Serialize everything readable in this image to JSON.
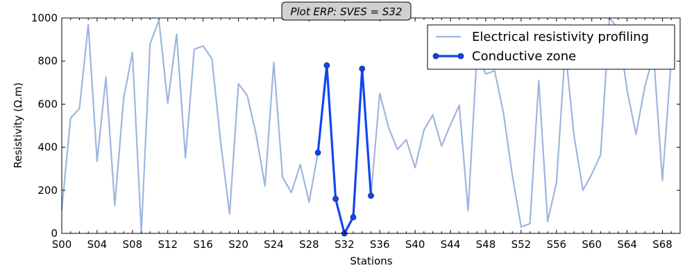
{
  "chart_data": {
    "type": "line",
    "title": "Plot ERP: SVES = S32",
    "xlabel": "Stations",
    "ylabel": "Resistivity (Ω.m)",
    "ylim": [
      0,
      1000
    ],
    "xlim": [
      0,
      70
    ],
    "yticks": [
      0,
      200,
      400,
      600,
      800,
      1000
    ],
    "xtick_labels": [
      "S00",
      "S04",
      "S08",
      "S12",
      "S16",
      "S20",
      "S24",
      "S28",
      "S32",
      "S36",
      "S40",
      "S44",
      "S48",
      "S52",
      "S56",
      "S60",
      "S64",
      "S68"
    ],
    "xtick_step": 4,
    "grid": false,
    "legend": "top-right",
    "series": [
      {
        "name": "Electrical resistivity profiling",
        "color": "#9db5e0",
        "x": [
          0,
          1,
          2,
          3,
          4,
          5,
          6,
          7,
          8,
          9,
          10,
          11,
          12,
          13,
          14,
          15,
          16,
          17,
          18,
          19,
          20,
          21,
          22,
          23,
          24,
          25,
          26,
          27,
          28,
          29,
          30,
          31,
          32,
          33,
          34,
          35,
          36,
          37,
          38,
          39,
          40,
          41,
          42,
          43,
          44,
          45,
          46,
          47,
          48,
          49,
          50,
          51,
          52,
          53,
          54,
          55,
          56,
          57,
          58,
          59,
          60,
          61,
          62,
          63,
          64,
          65,
          66,
          67,
          68,
          69
        ],
        "values": [
          110,
          535,
          580,
          970,
          335,
          725,
          130,
          625,
          840,
          5,
          880,
          990,
          605,
          925,
          350,
          855,
          870,
          810,
          420,
          90,
          695,
          640,
          460,
          220,
          795,
          260,
          190,
          320,
          145,
          375,
          780,
          160,
          0,
          75,
          765,
          175,
          650,
          490,
          390,
          435,
          305,
          480,
          550,
          405,
          505,
          595,
          105,
          830,
          740,
          755,
          560,
          270,
          30,
          45,
          710,
          55,
          235,
          855,
          450,
          200,
          275,
          365,
          1000,
          950,
          665,
          460,
          680,
          830,
          245,
          810
        ]
      },
      {
        "name": "Conductive zone",
        "color": "#0f45f0",
        "x": [
          29,
          30,
          31,
          32,
          33,
          34,
          35
        ],
        "values": [
          375,
          780,
          160,
          0,
          75,
          765,
          175
        ]
      }
    ]
  }
}
